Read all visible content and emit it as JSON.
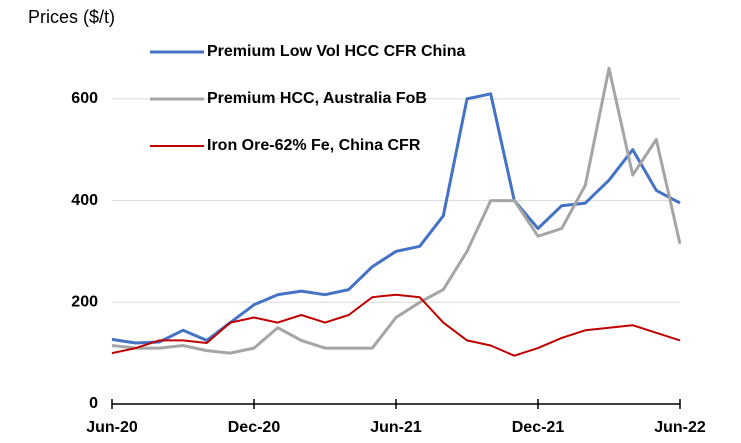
{
  "chart_data": {
    "type": "line",
    "y_label": "Prices ($/t)",
    "categories": [
      "Jun-20",
      null,
      null,
      null,
      null,
      null,
      "Dec-20",
      null,
      null,
      null,
      null,
      null,
      "Jun-21",
      null,
      null,
      null,
      null,
      null,
      "Dec-21",
      null,
      null,
      null,
      null,
      null,
      "Jun-22"
    ],
    "series": [
      {
        "name": "Premium Low Vol HCC CFR China",
        "color": "#4472c4",
        "values": [
          127,
          120,
          122,
          145,
          125,
          160,
          195,
          215,
          222,
          215,
          225,
          270,
          300,
          310,
          370,
          600,
          610,
          400,
          345,
          390,
          395,
          440,
          500,
          420,
          395
        ]
      },
      {
        "name": "Premium HCC, Australia FoB",
        "color": "#a5a5a5",
        "values": [
          115,
          110,
          110,
          115,
          105,
          100,
          110,
          150,
          125,
          110,
          110,
          110,
          170,
          200,
          225,
          300,
          400,
          400,
          330,
          345,
          430,
          660,
          450,
          520,
          315
        ]
      },
      {
        "name": "Iron Ore-62% Fe, China CFR",
        "color": "#c00000",
        "values": [
          100,
          110,
          125,
          125,
          120,
          160,
          170,
          160,
          175,
          160,
          175,
          210,
          215,
          210,
          160,
          125,
          115,
          95,
          110,
          130,
          145,
          150,
          155,
          140,
          125
        ]
      }
    ],
    "ylim": [
      0,
      700
    ],
    "yticks": [
      0,
      200,
      400,
      600
    ],
    "grid": true
  }
}
